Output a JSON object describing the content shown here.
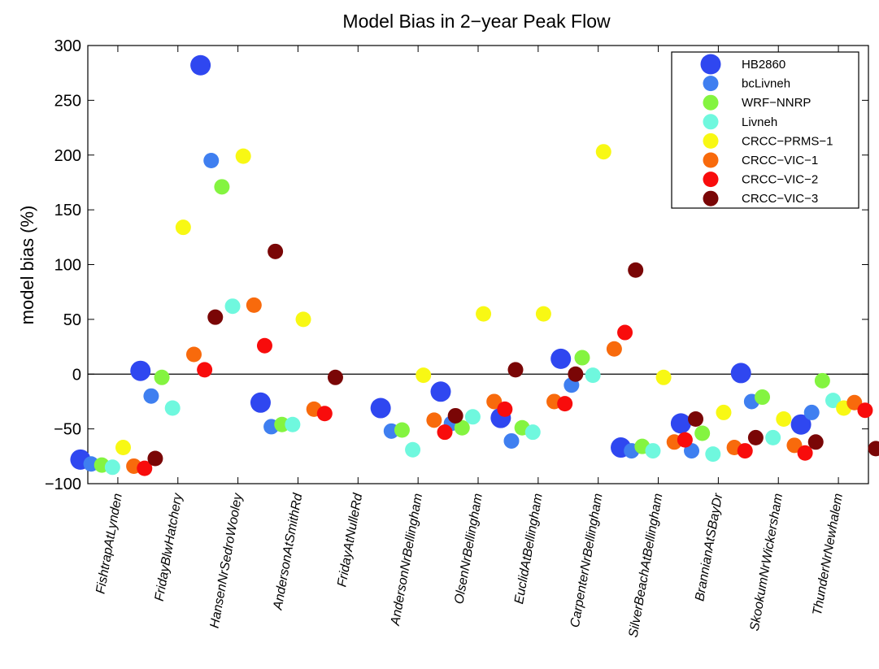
{
  "chart_data": {
    "type": "scatter",
    "title": "Model Bias in 2−year Peak Flow",
    "ylabel": "model bias (%)",
    "xlabel": "",
    "ylim": [
      -100,
      300
    ],
    "yticks": [
      -100,
      -50,
      0,
      50,
      100,
      150,
      200,
      250,
      300
    ],
    "ytick_labels": [
      "−100",
      "−50",
      "0",
      "50",
      "100",
      "150",
      "200",
      "250",
      "300"
    ],
    "categories": [
      "FishtrapAtLynden",
      "FridayBlwHatchery",
      "HansenNrSedroWooley",
      "AndersonAtSmithRd",
      "FridayAtNulleRd",
      "AndersonNrBellingham",
      "OlsenNrBellingham",
      "EuclidAtBellingham",
      "CarpenterNrBellingham",
      "SilverBeachAtBellingham",
      "BrannianAtSBayDr",
      "SkookumNrWickersham",
      "ThunderNrNewhalem"
    ],
    "zero_line": true,
    "grid": false,
    "legend_position": "top-right",
    "series": [
      {
        "name": "HB2860",
        "color": "#2f47f0",
        "values": [
          -78,
          3,
          282,
          -26,
          null,
          -31,
          -16,
          -40,
          14,
          -67,
          -45,
          1,
          -46
        ]
      },
      {
        "name": "bcLivneh",
        "color": "#3f7ff0",
        "values": [
          -82,
          -20,
          195,
          -48,
          null,
          -52,
          -45,
          -61,
          -10,
          -70,
          -70,
          -25,
          -35
        ]
      },
      {
        "name": "WRF−NNRP",
        "color": "#84f440",
        "values": [
          -83,
          -3,
          171,
          -46,
          null,
          -51,
          -49,
          -49,
          15,
          -66,
          -54,
          -21,
          -6
        ]
      },
      {
        "name": "Livneh",
        "color": "#6ff8de",
        "values": [
          -85,
          -31,
          62,
          -46,
          null,
          -69,
          -39,
          -53,
          -1,
          -70,
          -73,
          -58,
          -24
        ]
      },
      {
        "name": "CRCC−PRMS−1",
        "color": "#f8f814",
        "values": [
          -67,
          134,
          199,
          50,
          null,
          -1,
          55,
          55,
          203,
          -3,
          -35,
          -41,
          -31
        ]
      },
      {
        "name": "CRCC−VIC−1",
        "color": "#f86a0c",
        "values": [
          -84,
          18,
          63,
          -32,
          null,
          -42,
          -25,
          -25,
          23,
          -62,
          -67,
          -65,
          -26
        ]
      },
      {
        "name": "CRCC−VIC−2",
        "color": "#f80c0c",
        "values": [
          -86,
          4,
          26,
          -36,
          null,
          -53,
          -32,
          -27,
          38,
          -60,
          -70,
          -72,
          -33
        ]
      },
      {
        "name": "CRCC−VIC−3",
        "color": "#7a0606",
        "values": [
          -77,
          52,
          112,
          -3,
          null,
          -38,
          4,
          0,
          95,
          -41,
          -58,
          -62,
          -68
        ]
      }
    ]
  }
}
